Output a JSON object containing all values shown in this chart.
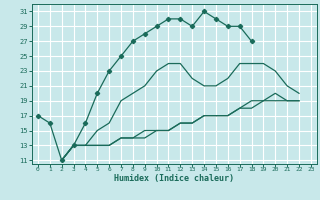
{
  "xlabel": "Humidex (Indice chaleur)",
  "bg_color": "#c8e8ea",
  "grid_color": "#ffffff",
  "line_color": "#1a6b5a",
  "xlim": [
    -0.5,
    23.5
  ],
  "ylim": [
    10.5,
    32.0
  ],
  "yticks": [
    11,
    13,
    15,
    17,
    19,
    21,
    23,
    25,
    27,
    29,
    31
  ],
  "xticks": [
    0,
    1,
    2,
    3,
    4,
    5,
    6,
    7,
    8,
    9,
    10,
    11,
    12,
    13,
    14,
    15,
    16,
    17,
    18,
    19,
    20,
    21,
    22,
    23
  ],
  "main_x": [
    0,
    1,
    2,
    3,
    4,
    5,
    6,
    7,
    8,
    9,
    10,
    11,
    12,
    13,
    14,
    15,
    16,
    17,
    18
  ],
  "main_y": [
    17,
    16,
    11,
    13,
    16,
    20,
    23,
    25,
    27,
    28,
    29,
    30,
    30,
    29,
    31,
    30,
    29,
    29,
    27
  ],
  "curve2_x": [
    2,
    3,
    4,
    5,
    6,
    7,
    8,
    9,
    10,
    11,
    12,
    13,
    14,
    15,
    16,
    17,
    19,
    20,
    21,
    22
  ],
  "curve2_y": [
    11,
    13,
    13,
    15,
    16,
    19,
    20,
    21,
    23,
    24,
    24,
    22,
    21,
    21,
    22,
    24,
    24,
    23,
    21,
    20
  ],
  "curve3_x": [
    2,
    3,
    4,
    5,
    6,
    7,
    8,
    9,
    10,
    11,
    12,
    13,
    14,
    15,
    16,
    17,
    18,
    19,
    20,
    21,
    22
  ],
  "curve3_y": [
    11,
    13,
    13,
    13,
    13,
    14,
    14,
    14,
    15,
    15,
    16,
    16,
    17,
    17,
    17,
    18,
    19,
    19,
    20,
    19,
    19
  ],
  "curve4_x": [
    2,
    3,
    4,
    5,
    6,
    7,
    8,
    9,
    10,
    11,
    12,
    13,
    14,
    15,
    16,
    17,
    18,
    19,
    20,
    21,
    22
  ],
  "curve4_y": [
    11,
    13,
    13,
    13,
    13,
    14,
    14,
    15,
    15,
    15,
    16,
    16,
    17,
    17,
    17,
    18,
    18,
    19,
    19,
    19,
    19
  ]
}
